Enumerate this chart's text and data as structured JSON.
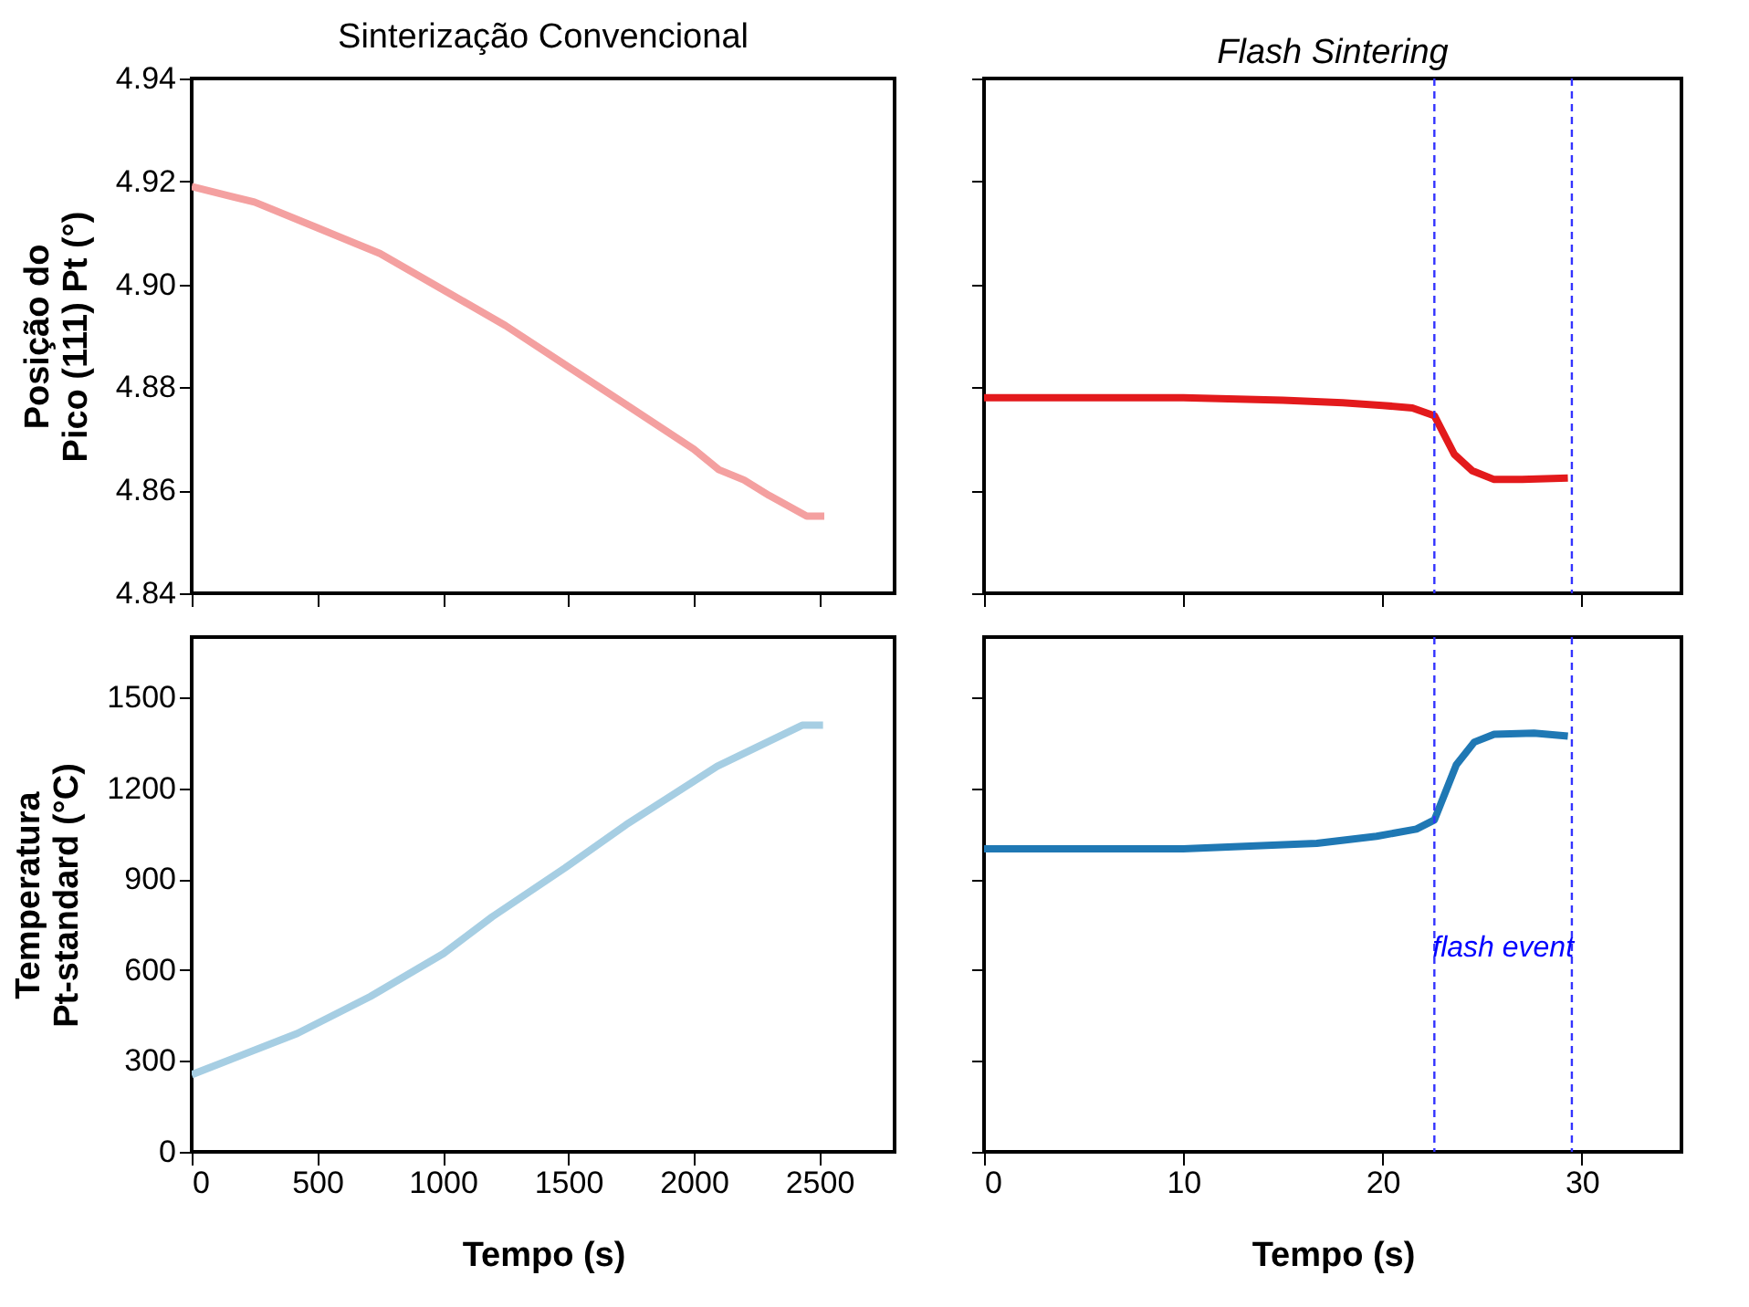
{
  "chart_data": [
    {
      "type": "line",
      "title": "Sinterização Convencional",
      "ylabel": [
        "Posição do",
        "Pico (111) Pt (°)"
      ],
      "tick_labels": "y",
      "xlim": [
        0,
        2800
      ],
      "xticks": [
        0,
        500,
        1000,
        1500,
        2000,
        2500
      ],
      "ylim": [
        4.84,
        4.94
      ],
      "yticks": [
        4.84,
        4.86,
        4.88,
        {
          "value": 4.9,
          "label": "4.90"
        },
        4.92,
        4.94
      ],
      "x": [
        0,
        250,
        500,
        750,
        1000,
        1250,
        1500,
        1750,
        2000,
        2100,
        2200,
        2300,
        2450,
        2520
      ],
      "series": [
        {
          "color": "#f4a0a0",
          "values": [
            4.919,
            4.916,
            4.911,
            4.906,
            4.899,
            4.892,
            4.884,
            4.876,
            4.868,
            4.864,
            4.862,
            4.859,
            4.855,
            4.855
          ]
        }
      ]
    },
    {
      "type": "line",
      "title": "Flash Sintering",
      "tick_labels": false,
      "xlim": [
        0,
        35
      ],
      "xticks": [
        0,
        10,
        20,
        30
      ],
      "ylim": [
        4.84,
        4.94
      ],
      "yticks": [
        4.84,
        4.86,
        4.88,
        4.9,
        4.92,
        4.94
      ],
      "x": [
        0,
        10,
        15,
        18,
        20,
        21.5,
        22.6,
        23.6,
        24.5,
        25.6,
        27,
        29.3
      ],
      "series": [
        {
          "color": "#e31a1c",
          "values": [
            4.878,
            4.878,
            4.8775,
            4.877,
            4.8765,
            4.876,
            4.8745,
            4.867,
            4.8638,
            4.8621,
            4.8621,
            4.8624
          ]
        }
      ],
      "ref_lines": [
        {
          "axis": "x",
          "value": 22.6,
          "color": "#3333ff",
          "line_style": "dashed"
        },
        {
          "axis": "x",
          "value": 29.5,
          "color": "#3333ff",
          "line_style": "dashed"
        }
      ]
    },
    {
      "type": "line",
      "xlabel": "Tempo (s)",
      "ylabel": [
        "Temperatura",
        "Pt-standard (°C)"
      ],
      "xlim": [
        0,
        2800
      ],
      "xticks": [
        0,
        500,
        1000,
        1500,
        2000,
        2500
      ],
      "ylim": [
        0,
        1700
      ],
      "yticks": [
        0,
        300,
        600,
        900,
        1200,
        1500
      ],
      "x": [
        0,
        421,
        712,
        1003,
        1197,
        1488,
        1730,
        2093,
        2432,
        2515
      ],
      "series": [
        {
          "color": "#a6cee3",
          "values": [
            255,
            391,
            513,
            655,
            776,
            938,
            1080,
            1273,
            1409,
            1409
          ]
        }
      ]
    },
    {
      "type": "line",
      "xlabel": "Tempo (s)",
      "tick_labels": "x",
      "xlim": [
        0,
        35
      ],
      "xticks": [
        0,
        10,
        20,
        30
      ],
      "ylim": [
        0,
        1700
      ],
      "yticks": [
        0,
        300,
        600,
        900,
        1200,
        1500
      ],
      "x": [
        0,
        10,
        16.7,
        19.7,
        21.7,
        22.6,
        23.7,
        24.6,
        25.6,
        27.6,
        29.3
      ],
      "series": [
        {
          "color": "#1f78b4",
          "values": [
            1001,
            1001,
            1019,
            1042,
            1066,
            1096,
            1278,
            1353,
            1379,
            1383,
            1373
          ]
        }
      ],
      "ref_lines": [
        {
          "axis": "x",
          "value": 22.6,
          "color": "#3333ff",
          "line_style": "dashed"
        },
        {
          "axis": "x",
          "value": 29.5,
          "color": "#3333ff",
          "line_style": "dashed"
        }
      ],
      "annotations": [
        "flash event"
      ]
    }
  ]
}
